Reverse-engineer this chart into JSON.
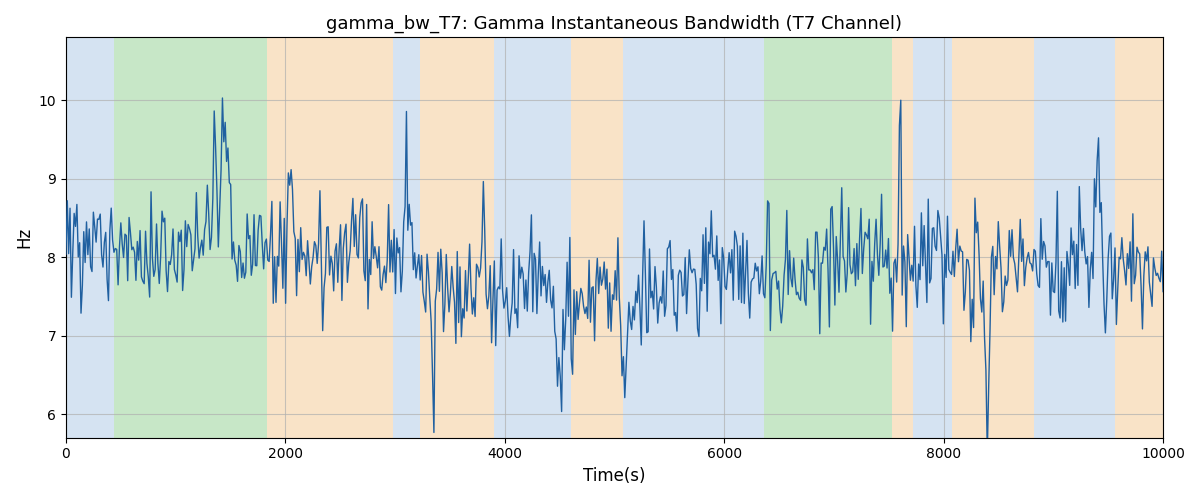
{
  "title": "gamma_bw_T7: Gamma Instantaneous Bandwidth (T7 Channel)",
  "xlabel": "Time(s)",
  "ylabel": "Hz",
  "xlim": [
    0,
    10000
  ],
  "ylim": [
    5.7,
    10.8
  ],
  "line_color": "#2060a0",
  "line_width": 1.0,
  "background_bands": [
    {
      "xstart": 0,
      "xend": 440,
      "color": "#adc8e6",
      "alpha": 0.5
    },
    {
      "xstart": 440,
      "xend": 1830,
      "color": "#90d090",
      "alpha": 0.5
    },
    {
      "xstart": 1830,
      "xend": 2980,
      "color": "#f5c890",
      "alpha": 0.5
    },
    {
      "xstart": 2980,
      "xend": 3230,
      "color": "#adc8e6",
      "alpha": 0.5
    },
    {
      "xstart": 3230,
      "xend": 3900,
      "color": "#f5c890",
      "alpha": 0.5
    },
    {
      "xstart": 3900,
      "xend": 4600,
      "color": "#adc8e6",
      "alpha": 0.5
    },
    {
      "xstart": 4600,
      "xend": 5080,
      "color": "#f5c890",
      "alpha": 0.5
    },
    {
      "xstart": 5080,
      "xend": 6100,
      "color": "#adc8e6",
      "alpha": 0.5
    },
    {
      "xstart": 6100,
      "xend": 6360,
      "color": "#adc8e6",
      "alpha": 0.5
    },
    {
      "xstart": 6360,
      "xend": 7530,
      "color": "#90d090",
      "alpha": 0.5
    },
    {
      "xstart": 7530,
      "xend": 7720,
      "color": "#f5c890",
      "alpha": 0.5
    },
    {
      "xstart": 7720,
      "xend": 8080,
      "color": "#adc8e6",
      "alpha": 0.5
    },
    {
      "xstart": 8080,
      "xend": 8820,
      "color": "#f5c890",
      "alpha": 0.5
    },
    {
      "xstart": 8820,
      "xend": 9560,
      "color": "#adc8e6",
      "alpha": 0.5
    },
    {
      "xstart": 9560,
      "xend": 10000,
      "color": "#f5c890",
      "alpha": 0.5
    }
  ],
  "yticks": [
    6,
    7,
    8,
    9,
    10
  ],
  "xticks": [
    0,
    2000,
    4000,
    6000,
    8000,
    10000
  ],
  "grid_color": "#b0b0b0",
  "grid_alpha": 0.7,
  "figsize": [
    12,
    5
  ],
  "dpi": 100
}
